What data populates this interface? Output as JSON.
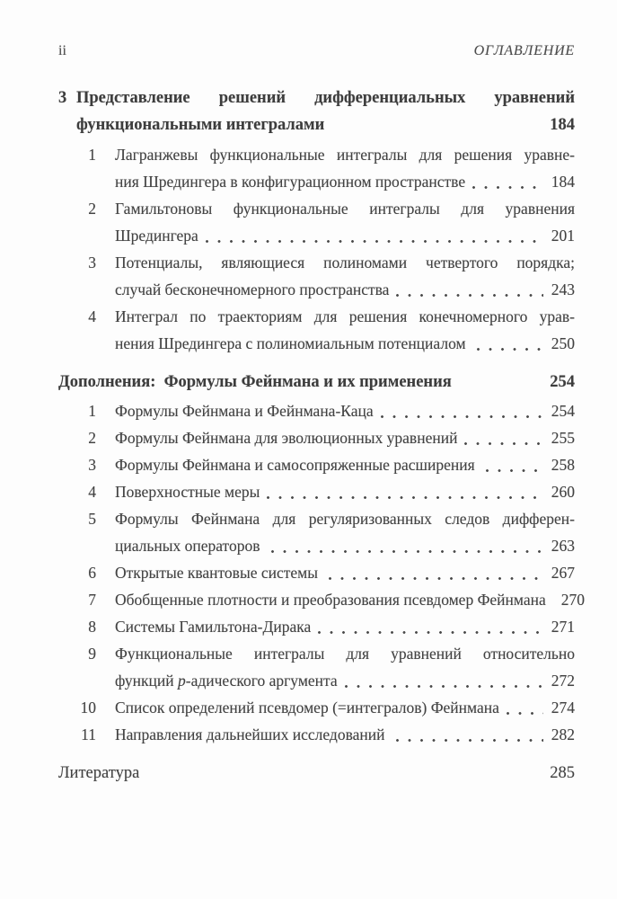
{
  "header": {
    "page_label": "ii",
    "running_title": "ОГЛАВЛЕНИЕ"
  },
  "chapter": {
    "number": "3",
    "title_line1": "Представление решений дифференциальных уравнений",
    "title_line2": "функциональными интегралами",
    "page": "184",
    "items": [
      {
        "num": "1",
        "line1": "Лагранжевы функциональные интегралы для решения уравне-",
        "line2": "ния Шредингера в конфигурационном пространстве",
        "page": "184"
      },
      {
        "num": "2",
        "line1": "Гамильтоновы функциональные интегралы для уравнения",
        "line2": "Шредингера",
        "page": "201"
      },
      {
        "num": "3",
        "line1": "Потенциалы, являющиеся полиномами четвертого порядка;",
        "line2": "случай бесконечномерного пространства",
        "page": "243"
      },
      {
        "num": "4",
        "line1": "Интеграл по траекториям для решения конечномерного урав-",
        "line2": "нения Шредингера с полиномиальным потенциалом ",
        "page": "250"
      }
    ]
  },
  "supplement": {
    "title": "Дополнения:  Формулы Фейнмана и их применения",
    "page": "254",
    "items": [
      {
        "num": "1",
        "line1": "Формулы Фейнмана и Фейнмана-Каца",
        "page": "254"
      },
      {
        "num": "2",
        "line1": "Формулы Фейнмана для эволюционных уравнений",
        "page": "255"
      },
      {
        "num": "3",
        "line1": "Формулы Фейнмана и самосопряженные расширения ",
        "page": "258"
      },
      {
        "num": "4",
        "line1": "Поверхностные меры",
        "page": "260"
      },
      {
        "num": "5",
        "line1": "Формулы Фейнмана для регуляризованных следов дифферен-",
        "line2": "циальных операторов ",
        "page": "263"
      },
      {
        "num": "6",
        "line1": "Открытые квантовые системы ",
        "page": "267"
      },
      {
        "num": "7",
        "line1": "Обобщенные плотности и преобразования псевдомер Фейнмана",
        "page": "270"
      },
      {
        "num": "8",
        "line1": "Системы Гамильтона-Дирака",
        "page": "271"
      },
      {
        "num": "9",
        "line1": "Функциональные интегралы для уравнений относительно",
        "line2_pre": "функций ",
        "line2_italic": "p",
        "line2_post": "-адического аргумента",
        "page": "272"
      },
      {
        "num": "10",
        "line1": "Список определений псевдомер (=интегралов) Фейнмана",
        "page": "274"
      },
      {
        "num": "11",
        "line1": "Направления дальнейших исследований ",
        "page": "282"
      }
    ]
  },
  "literature": {
    "title": "Литература",
    "page": "285"
  },
  "colors": {
    "text": "#424242",
    "background": "#fdfdfd",
    "leader_dot": "#4a4a4a"
  }
}
